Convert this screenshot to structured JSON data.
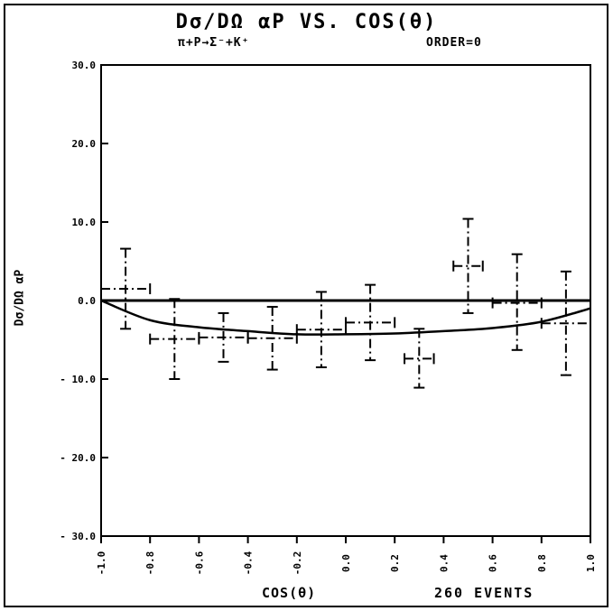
{
  "header": {
    "title": "Dσ/DΩ αP VS. COS(θ)",
    "reaction": "π+P→Σ⁻+K⁺",
    "order": "ORDER=0"
  },
  "footer": {
    "xlabel": "COS(θ)",
    "events": "260   EVENTS"
  },
  "chart_data": {
    "type": "scatter",
    "title": "Dσ/DΩ αP VS. COS(θ)",
    "subtitle": "π+P→Σ⁻+K⁺   ORDER=0",
    "xlabel": "COS(θ)",
    "ylabel": "Dσ/DΩ αP",
    "xlim": [
      -1.0,
      1.0
    ],
    "ylim": [
      -30.0,
      30.0
    ],
    "x_ticks": [
      "-1.0",
      "-0.8",
      "-0.6",
      "-0.4",
      "-0.2",
      "0.0",
      "0.2",
      "0.4",
      "0.6",
      "0.8",
      "1.0"
    ],
    "y_ticks": [
      {
        "value": 30,
        "label": "30.0"
      },
      {
        "value": 20,
        "label": "20.0"
      },
      {
        "value": 10,
        "label": "10.0"
      },
      {
        "value": 0,
        "label": "0.0"
      },
      {
        "value": -10,
        "label": "- 10.0"
      },
      {
        "value": -20,
        "label": "- 20.0"
      },
      {
        "value": -30,
        "label": "- 30.0"
      }
    ],
    "grid": false,
    "series": [
      {
        "kind": "points_with_errors",
        "points": [
          {
            "x": -0.9,
            "y": 1.5,
            "xerr": 0.1,
            "ylo": -3.6,
            "yhi": 6.6
          },
          {
            "x": -0.7,
            "y": -4.9,
            "xerr": 0.1,
            "ylo": -10.0,
            "yhi": 0.2
          },
          {
            "x": -0.5,
            "y": -4.7,
            "xerr": 0.1,
            "ylo": -7.8,
            "yhi": -1.6
          },
          {
            "x": -0.3,
            "y": -4.8,
            "xerr": 0.1,
            "ylo": -8.8,
            "yhi": -0.8
          },
          {
            "x": -0.1,
            "y": -3.7,
            "xerr": 0.1,
            "ylo": -8.5,
            "yhi": 1.1
          },
          {
            "x": 0.1,
            "y": -2.8,
            "xerr": 0.1,
            "ylo": -7.6,
            "yhi": 2.0
          },
          {
            "x": 0.3,
            "y": -7.4,
            "xerr": 0.06,
            "ylo": -11.1,
            "yhi": -3.6
          },
          {
            "x": 0.5,
            "y": 4.4,
            "xerr": 0.06,
            "ylo": -1.6,
            "yhi": 10.4
          },
          {
            "x": 0.7,
            "y": -0.3,
            "xerr": 0.1,
            "ylo": -6.3,
            "yhi": 5.9
          },
          {
            "x": 0.9,
            "y": -2.9,
            "xerr": 0.1,
            "ylo": -9.5,
            "yhi": 3.7
          }
        ]
      },
      {
        "kind": "fit_curve",
        "x": [
          -1.0,
          -0.8,
          -0.6,
          -0.4,
          -0.2,
          0.0,
          0.2,
          0.4,
          0.6,
          0.8,
          1.0
        ],
        "values": [
          0.0,
          -2.5,
          -3.4,
          -3.9,
          -4.3,
          -4.3,
          -4.2,
          -3.9,
          -3.5,
          -2.7,
          -1.0
        ]
      },
      {
        "kind": "zero_line",
        "x": [
          -1.0,
          1.0
        ],
        "values": [
          0.0,
          0.0
        ]
      }
    ]
  }
}
